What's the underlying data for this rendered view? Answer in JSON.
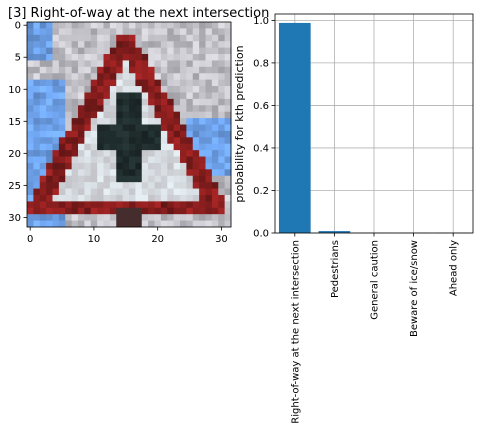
{
  "chart_data": [
    {
      "type": "image",
      "title": "[3] Right-of-way at the next intersection",
      "xticks": [
        "0",
        "10",
        "20",
        "30"
      ],
      "yticks": [
        "0",
        "5",
        "10",
        "15",
        "20",
        "25",
        "30"
      ],
      "xlim": [
        -0.5,
        31.5
      ],
      "ylim": [
        31.5,
        -0.5
      ],
      "image_size": [
        32,
        32
      ],
      "colors": {
        "background_light": "#c4c4c4",
        "background_blue": "#6fa3e6",
        "sign_border": "#8e1f1f",
        "sign_fill": "#e6e6e6",
        "symbol": "#1e2a2a"
      }
    },
    {
      "type": "bar",
      "categories": [
        "Right-of-way at the next intersection",
        "Pedestrians",
        "General caution",
        "Beware of ice/snow",
        "Ahead only"
      ],
      "values": [
        0.988,
        0.009,
        0.001,
        0.001,
        0.001
      ],
      "ylabel": "probability for kth prediction",
      "ylim": [
        0,
        1.03
      ],
      "yticks": [
        "0.0",
        "0.2",
        "0.4",
        "0.6",
        "0.8",
        "1.0"
      ],
      "grid": true,
      "bar_color": "#1f77b4"
    }
  ]
}
